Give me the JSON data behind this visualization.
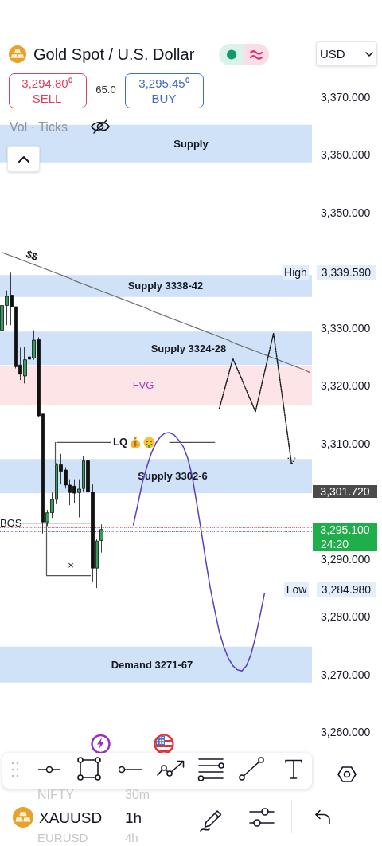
{
  "chart_data": {
    "type": "candlestick",
    "title": "Gold Spot / U.S. Dollar",
    "categories": [
      null,
      null,
      null,
      null,
      null,
      null,
      null,
      null,
      null,
      null,
      null,
      null,
      null,
      null,
      null,
      null,
      null,
      null,
      null,
      null,
      null,
      null,
      null,
      null,
      null,
      null,
      null,
      null,
      null,
      null,
      null,
      null,
      null,
      null,
      null,
      null,
      null,
      null,
      null,
      null,
      null,
      null,
      null,
      null,
      null,
      null,
      null,
      null,
      null,
      null,
      null,
      null,
      null,
      null,
      null,
      null,
      null,
      null,
      null,
      null,
      null,
      null,
      null,
      null,
      null,
      null,
      null,
      null,
      null
    ],
    "ohlc": [
      [
        3329.6,
        3336.5,
        3329.4,
        3333.9
      ],
      [
        3333.9,
        3336.5,
        3330.5,
        3335.5
      ],
      [
        3335.7,
        3339.59,
        3330.5,
        3333.7
      ],
      [
        3333.7,
        3333.7,
        3323.0,
        3323.3
      ],
      [
        3323.6,
        3326.6,
        3321.0,
        3322.0
      ],
      [
        3321.7,
        3326.8,
        3320.4,
        3324.5
      ],
      [
        3325.0,
        3327.5,
        3319.7,
        3324.6
      ],
      [
        3324.8,
        3329.6,
        3324.5,
        3327.9
      ],
      [
        3328.0,
        3328.4,
        3314.6,
        3314.8
      ],
      [
        3315.1,
        3315.1,
        3294.4,
        3296.4
      ],
      [
        3296.4,
        3298.5,
        3295.7,
        3298.0
      ],
      [
        3298.0,
        3301.5,
        3297.1,
        3300.3
      ],
      [
        3300.3,
        3306.6,
        3299.5,
        3306.3
      ],
      [
        3306.3,
        3308.2,
        3302.9,
        3305.2
      ],
      [
        3305.4,
        3305.9,
        3302.2,
        3302.8
      ],
      [
        3302.8,
        3303.8,
        3299.3,
        3301.5
      ],
      [
        3302.6,
        3303.8,
        3299.6,
        3301.4
      ],
      [
        3301.5,
        3303.8,
        3297.2,
        3302.1
      ],
      [
        3302.2,
        3307.9,
        3301.7,
        3307.0
      ],
      [
        3307.0,
        3307.2,
        3299.3,
        3301.6
      ],
      [
        3301.6,
        3302.9,
        3286.1,
        3288.4
      ],
      [
        3288.4,
        3293.5,
        3284.98,
        3293.1
      ],
      [
        3293.2,
        3296.0,
        3291.1,
        3295.1
      ],
      null,
      null,
      null,
      null,
      null,
      null,
      null,
      null,
      null,
      null,
      null,
      null,
      null,
      null,
      null,
      null,
      null,
      null,
      null,
      null,
      null,
      null,
      null,
      null,
      null,
      null,
      null,
      null,
      null,
      null,
      null,
      null,
      null,
      null,
      null,
      null,
      null,
      null,
      null,
      null,
      null,
      null,
      null,
      null,
      null,
      null
    ],
    "colors": [
      "#33a05a",
      "#33a05a",
      "#111111",
      "#111111",
      "#111111",
      "#33a05a",
      "#111111",
      "#33a05a",
      "#111111",
      "#111111",
      "#33a05a",
      "#33a05a",
      "#33a05a",
      "#111111",
      "#111111",
      "#111111",
      "#111111",
      "#33a05a",
      "#33a05a",
      "#111111",
      "#111111",
      "#33a05a",
      "#33a05a",
      null,
      null,
      null,
      null,
      null,
      null,
      null,
      null,
      null,
      null,
      null,
      null,
      null,
      null,
      null,
      null,
      null,
      null,
      null,
      null,
      null,
      null,
      null,
      null,
      null,
      null,
      null,
      null,
      null,
      null,
      null,
      null,
      null,
      null,
      null,
      null,
      null,
      null,
      null,
      null,
      null,
      null,
      null,
      null,
      null,
      null
    ],
    "series": [
      {
        "type": "line",
        "color": "#707070",
        "values": [
          3343.1,
          3342.8,
          3342.5,
          3342.2,
          3341.9,
          3341.6,
          3341.3,
          3341.0,
          3340.7,
          3340.4,
          3340.1,
          3339.8,
          3339.5,
          3339.2,
          3338.9,
          3338.6,
          3338.2,
          3337.9,
          3337.6,
          3337.3,
          3337.0,
          3336.7,
          3336.4,
          3336.1,
          3335.8,
          3335.5,
          3335.2,
          3334.9,
          3334.6,
          3334.3,
          3334.0,
          3333.7,
          3333.4,
          3333.0,
          3332.7,
          3332.4,
          3332.1,
          3331.8,
          3331.5,
          3331.2,
          3330.9,
          3330.6,
          3330.3,
          3330.0,
          3329.7,
          3329.4,
          3329.1,
          3328.8,
          3328.5,
          3328.2,
          3327.9,
          3327.5,
          3327.2,
          3326.9,
          3326.6,
          3326.3,
          3326.0,
          3325.7,
          3325.4,
          3325.1,
          3324.8,
          3324.5,
          3324.2,
          3323.9,
          3323.6,
          3323.3,
          3323.0,
          3322.7,
          3322.3
        ]
      },
      {
        "type": "line",
        "color": "#505050",
        "values": [
          null,
          null,
          null,
          null,
          3296.2,
          3296.2,
          3296.2,
          3296.2,
          3296.2,
          3296.2,
          3296.2,
          3296.2,
          3296.2,
          3296.2,
          3296.2,
          3296.2,
          3296.2,
          3296.2,
          3296.2,
          3296.2,
          3296.2,
          null,
          null,
          null,
          null,
          null,
          null,
          null,
          null,
          null,
          null,
          null,
          null,
          null,
          null,
          null,
          null,
          null,
          null,
          null,
          null,
          null,
          null,
          null,
          null,
          null,
          null,
          null,
          null,
          null,
          null,
          null,
          null,
          null,
          null,
          null,
          null,
          null,
          null,
          null,
          null,
          null,
          null,
          null,
          null,
          null,
          null,
          null,
          null
        ]
      },
      {
        "type": "line",
        "color": "#505050",
        "values": [
          null,
          null,
          null,
          null,
          null,
          null,
          null,
          null,
          null,
          null,
          null,
          null,
          3310.2,
          3310.2,
          3310.2,
          3310.2,
          3310.2,
          3310.2,
          3310.2,
          3310.2,
          3310.2,
          3310.2,
          3310.2,
          3310.2,
          3310.2,
          null,
          null,
          null,
          null,
          null,
          null,
          null,
          null,
          null,
          null,
          null,
          null,
          3310.2,
          3310.2,
          3310.2,
          3310.2,
          3310.2,
          3310.2,
          3310.2,
          3310.2,
          3310.2,
          3310.2,
          3310.2,
          null,
          null,
          null,
          null,
          null,
          null,
          null,
          null,
          null,
          null,
          null,
          null,
          null,
          null,
          null,
          null,
          null,
          null,
          null,
          null,
          null
        ]
      },
      {
        "type": "line",
        "color": "#5a3fc0",
        "values": [
          null,
          null,
          null,
          null,
          null,
          null,
          null,
          null,
          null,
          null,
          null,
          null,
          null,
          null,
          null,
          null,
          null,
          null,
          null,
          null,
          null,
          null,
          null,
          null,
          null,
          null,
          null,
          null,
          null,
          3295.9,
          3299.5,
          3303.3,
          3306.0,
          3308.4,
          3310.1,
          3311.2,
          3311.8,
          3311.9,
          3311.5,
          3310.6,
          3309.5,
          3307.5,
          3304.4,
          3299.7,
          3294.9,
          3289.8,
          3285.0,
          3281.1,
          3277.4,
          3274.8,
          3272.8,
          3271.5,
          3270.8,
          3270.6,
          3271.5,
          3273.4,
          3276.4,
          3280.1,
          3284.0,
          null,
          null,
          null,
          null,
          null,
          null,
          null,
          null,
          null,
          null
        ]
      },
      {
        "type": "line",
        "color": "#1a1a1a",
        "line_style": "dotted",
        "values": [
          null,
          null,
          null,
          null,
          null,
          null,
          null,
          null,
          null,
          null,
          null,
          null,
          null,
          null,
          null,
          null,
          null,
          null,
          null,
          null,
          null,
          null,
          null,
          null,
          null,
          null,
          null,
          null,
          null,
          null,
          null,
          null,
          null,
          null,
          null,
          null,
          null,
          null,
          null,
          null,
          null,
          null,
          null,
          null,
          null,
          null,
          null,
          null,
          3316.0,
          3318.9,
          3321.8,
          3324.7,
          3322.9,
          3321.1,
          3319.2,
          3317.4,
          3315.5,
          3318.9,
          3322.3,
          3325.7,
          3329.1,
          3323.4,
          3317.8,
          3312.1,
          3306.4,
          null,
          null,
          null,
          null
        ]
      }
    ],
    "bands": [
      {
        "axis": "y",
        "from": 3358.7,
        "to": 3365.2,
        "label": "Supply",
        "color": "#cfe2f8"
      },
      {
        "axis": "y",
        "from": 3335.4,
        "to": 3339.2,
        "label": "Supply 3338-42",
        "color": "#cfe2f8"
      },
      {
        "axis": "y",
        "from": 3323.6,
        "to": 3329.4,
        "label": "Supply 3324-28",
        "color": "#cfe2f8"
      },
      {
        "axis": "y",
        "from": 3316.7,
        "to": 3323.5,
        "label": "FVG",
        "color": "#fde4e7"
      },
      {
        "axis": "y",
        "from": 3301.4,
        "to": 3307.3,
        "label": "Supply 3302-6",
        "color": "#cfe2f8"
      },
      {
        "axis": "y",
        "from": 3268.6,
        "to": 3274.8,
        "label": "Demand 3271-67",
        "color": "#cfe2f8"
      }
    ],
    "ref_lines": [
      {
        "axis": "y",
        "value": 3295.45,
        "color": "#e05a6a",
        "line_style": "dotted"
      },
      {
        "axis": "y",
        "value": 3294.8,
        "color": "#4a6fd6",
        "line_style": "dotted"
      }
    ],
    "ylim": [
      3260,
      3370
    ],
    "yticks": [
      {
        "value": 3260,
        "label": "3,260.000"
      },
      {
        "value": 3270,
        "label": "3,270.000"
      },
      {
        "value": 3280,
        "label": "3,280.000"
      },
      {
        "value": 3290,
        "label": "3,290.000"
      },
      {
        "value": 3310,
        "label": "3,310.000"
      },
      {
        "value": 3320,
        "label": "3,320.000"
      },
      {
        "value": 3330,
        "label": "3,330.000"
      },
      {
        "value": 3350,
        "label": "3,350.000"
      },
      {
        "value": 3360,
        "label": "3,360.000"
      },
      {
        "value": 3370,
        "label": "3,370.000"
      }
    ],
    "tick_labels": "y",
    "marker": "none",
    "annotations": [
      "3,294.80⁰",
      "SELL",
      "65.0",
      "3,295.45⁰",
      "BUY",
      "USD",
      "Vol · Ticks",
      "$$",
      "LQ",
      "BOS",
      "×",
      "High",
      "3,339.590",
      "3,301.720",
      "3,295.100",
      "24:20",
      "Low",
      "3,284.980",
      "NIFTY",
      "30m",
      "XAUUSD",
      "1h",
      "EURUSD",
      "4h"
    ]
  }
}
